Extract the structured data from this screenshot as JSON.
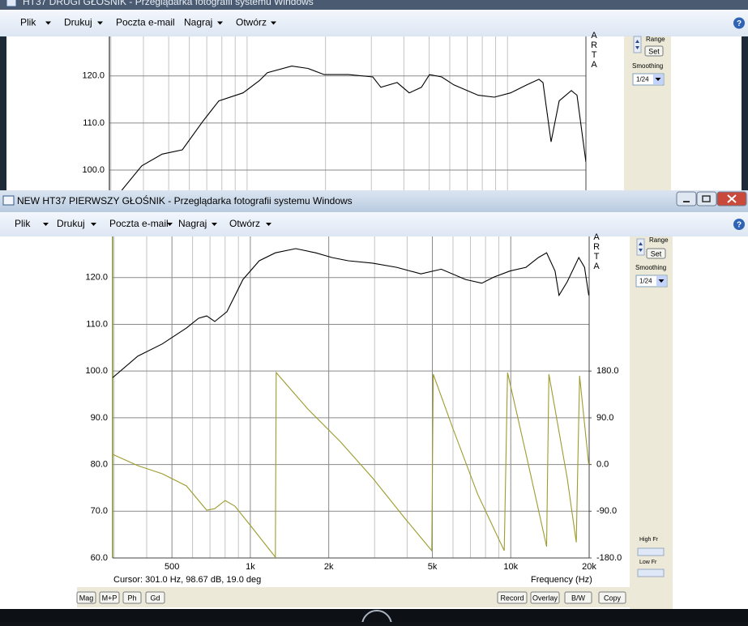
{
  "background_window": {
    "title": "HT37 DRUGI GŁOŚNIK - Przeglądarka fotografii systemu Windows",
    "menu": [
      "Plik",
      "Drukuj",
      "Poczta e-mail",
      "Nagraj",
      "Otwórz"
    ],
    "panel": {
      "range": "Range",
      "set": "Set",
      "smoothing": "Smoothing",
      "smoothing_value": "1/24"
    },
    "arta": "ARTA"
  },
  "window": {
    "title": "NEW HT37 PIERWSZY GŁOŚNIK - Przeglądarka fotografii systemu Windows",
    "menu": [
      "Plik",
      "Drukuj",
      "Poczta e-mail",
      "Nagraj",
      "Otwórz"
    ],
    "panel": {
      "range": "Range",
      "set": "Set",
      "smoothing": "Smoothing",
      "smoothing_value": "1/24",
      "high_fr": "High Fr",
      "low_fr": "Low Fr"
    },
    "arta": "ARTA",
    "buttons_left": [
      "Mag",
      "M+P",
      "Ph",
      "Gd"
    ],
    "buttons_right": [
      "Record",
      "Overlay",
      "B/W",
      "Copy"
    ]
  },
  "chart_data": [
    {
      "type": "line",
      "log_x": true,
      "grid": true,
      "xlim": [
        296,
        20000
      ],
      "xminor": [
        300,
        400,
        500,
        600,
        700,
        800,
        900,
        1000,
        2000,
        3000,
        4000,
        5000,
        6000,
        7000,
        8000,
        9000,
        10000,
        20000
      ],
      "ylim": [
        95.7,
        128.4
      ],
      "yticks": [
        {
          "value": 100,
          "label": "100.0"
        },
        {
          "value": 110,
          "label": "110.0"
        },
        {
          "value": 120,
          "label": "120.0"
        }
      ],
      "series": [
        {
          "color": "#000000",
          "x": [
            330,
            394,
            472,
            564,
            675,
            779,
            965,
            1114,
            1197,
            1484,
            1713,
            1977,
            2451,
            3038,
            3264,
            3767,
            4195,
            4670,
            5017,
            5586,
            6220,
            7712,
            8900,
            10270,
            11860,
            13200,
            13680,
            14700,
            15790,
            17580,
            18490,
            20000
          ],
          "values": [
            95.7,
            100.9,
            103.4,
            104.3,
            110.3,
            114.7,
            116.4,
            119.0,
            120.7,
            122.1,
            121.6,
            120.3,
            120.3,
            119.8,
            117.6,
            118.6,
            116.4,
            117.6,
            120.3,
            119.8,
            118.1,
            115.9,
            115.5,
            116.4,
            118.1,
            119.3,
            118.6,
            106.0,
            114.7,
            116.9,
            115.9,
            101.7
          ]
        }
      ]
    },
    {
      "type": "line",
      "log_x": true,
      "grid": true,
      "x_label": "Frequency (Hz)",
      "annotation": "Cursor: 301.0 Hz, 98.67 dB, 19.0 deg",
      "xlim": [
        296,
        20000
      ],
      "xticks": [
        {
          "value": 500,
          "label": "500"
        },
        {
          "value": 1000,
          "label": "1k"
        },
        {
          "value": 2000,
          "label": "2k"
        },
        {
          "value": 5000,
          "label": "5k"
        },
        {
          "value": 10000,
          "label": "10k"
        },
        {
          "value": 20000,
          "label": "20k"
        }
      ],
      "xminor": [
        300,
        400,
        600,
        700,
        800,
        900,
        3000,
        4000,
        6000,
        7000,
        8000,
        9000
      ],
      "ylim": [
        60,
        128.8
      ],
      "yticks": [
        {
          "value": 60,
          "label": "60.0"
        },
        {
          "value": 70,
          "label": "70.0"
        },
        {
          "value": 80,
          "label": "80.0"
        },
        {
          "value": 90,
          "label": "90.0"
        },
        {
          "value": 100,
          "label": "100.0"
        },
        {
          "value": 110,
          "label": "110.0"
        },
        {
          "value": 120,
          "label": "120.0"
        }
      ],
      "y2lim": [
        -180,
        439.3
      ],
      "y2ticks": [
        {
          "value": 180,
          "label": "180.0"
        },
        {
          "value": 90,
          "label": "90.0"
        },
        {
          "value": 0,
          "label": "0.0"
        },
        {
          "value": -90,
          "label": "-90.0"
        },
        {
          "value": -180,
          "label": "-180.0"
        }
      ],
      "series": [
        {
          "color": "#000000",
          "x": [
            296,
            370,
            459,
            568,
            633,
            680,
            730,
            813,
            937,
            1082,
            1248,
            1494,
            1783,
            2058,
            2376,
            2944,
            3648,
            4519,
            5409,
            6700,
            7737,
            8600,
            9918,
            11440,
            12770,
            13730,
            14790,
            15320,
            16470,
            18250,
            19200,
            19930
          ],
          "values": [
            98.6,
            103.2,
            105.8,
            109.2,
            111.3,
            111.8,
            110.6,
            112.7,
            119.6,
            123.6,
            125.3,
            126.2,
            125.3,
            124.3,
            123.6,
            123.1,
            122.2,
            120.8,
            121.8,
            119.6,
            118.8,
            120.1,
            121.4,
            122.2,
            124.3,
            125.3,
            121.4,
            116.2,
            119.1,
            124.3,
            122.2,
            116.2
          ]
        },
        {
          "color": "#9c9c2e",
          "axis": "y2",
          "x": [
            296,
            370,
            459,
            568,
            680,
            730,
            800,
            873,
            1007,
            1248,
            1257,
            1662,
            2210,
            2944,
            3920,
            4975,
            5040,
            6012,
            7460,
            9442,
            9717,
            11440,
            13730,
            14010,
            16470,
            17850,
            18380,
            19930
          ],
          "values": [
            19.7,
            -2.2,
            -17.8,
            -41.2,
            -88,
            -85,
            -69.2,
            -80.2,
            -119.2,
            -178.4,
            177,
            107,
            44.6,
            -25.6,
            -103.6,
            -166,
            174,
            68,
            -57,
            -166,
            177,
            21,
            -158,
            174,
            -26,
            -150,
            171,
            -0.6
          ]
        }
      ]
    }
  ]
}
